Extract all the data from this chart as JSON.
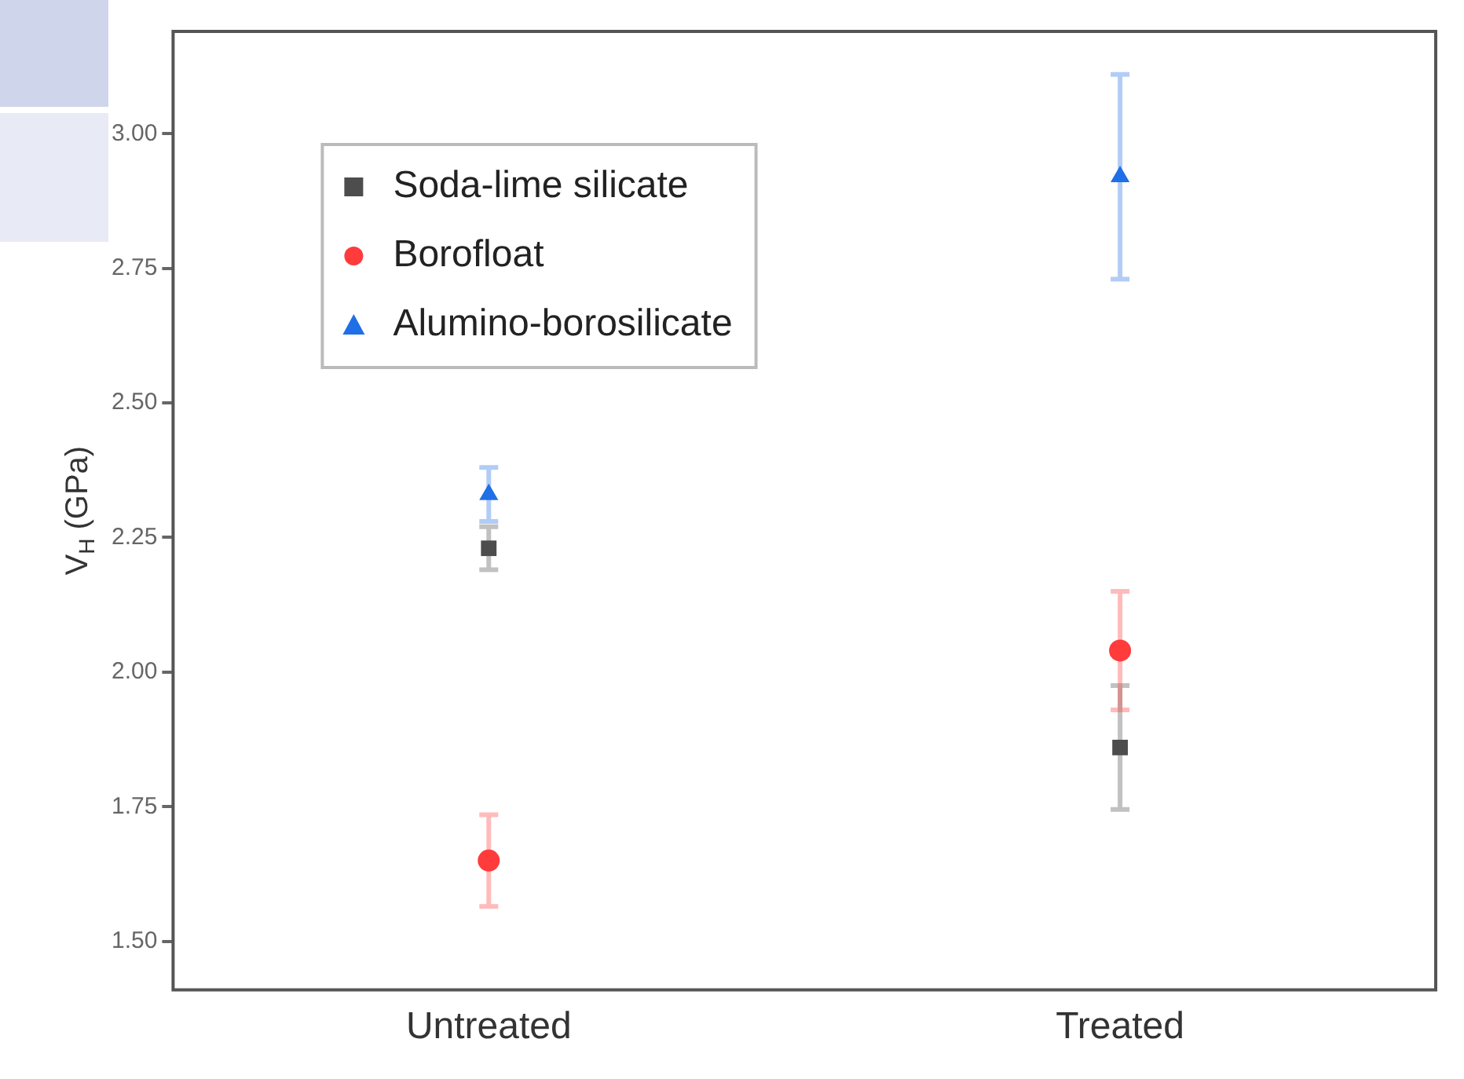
{
  "chart_data": {
    "type": "scatter",
    "ylabel": "V$_{H}$ (GPa)",
    "categories": [
      "Untreated",
      "Treated"
    ],
    "series": [
      {
        "name": "Soda-lime silicate",
        "color": "#4d4d4d",
        "marker": "square",
        "values": [
          2.23,
          1.86
        ],
        "errors": [
          0.04,
          0.115
        ]
      },
      {
        "name": "Borofloat",
        "color": "#ff3b3b",
        "marker": "circle",
        "values": [
          1.65,
          2.04
        ],
        "errors": [
          0.085,
          0.11
        ]
      },
      {
        "name": "Alumino-borosilicate",
        "color": "#1f6fe6",
        "marker": "triangle",
        "values": [
          2.33,
          2.92
        ],
        "errors": [
          0.05,
          0.19
        ]
      }
    ],
    "ylim": [
      1.41,
      3.19
    ],
    "yticks": [
      {
        "value": 1.5,
        "label": "1.50"
      },
      {
        "value": 1.75,
        "label": "1.75"
      },
      {
        "value": 2.0,
        "label": "2.00"
      },
      {
        "value": 2.25,
        "label": "2.25"
      },
      {
        "value": 2.5,
        "label": "2.50"
      },
      {
        "value": 2.75,
        "label": "2.75"
      },
      {
        "value": 3.0,
        "label": "3.00"
      }
    ],
    "grid": false,
    "legend": "top left"
  }
}
